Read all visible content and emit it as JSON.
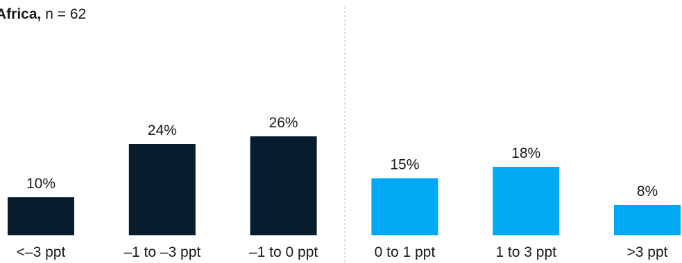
{
  "chart_data": {
    "type": "bar",
    "title_region": "Africa,",
    "title_n": "n = 62",
    "categories": [
      "<–3 ppt",
      "–1 to –3 ppt",
      "–1 to 0 ppt",
      "0 to 1 ppt",
      "1 to 3 ppt",
      ">3 ppt"
    ],
    "values": [
      10,
      24,
      26,
      15,
      18,
      8
    ],
    "value_labels": [
      "10%",
      "24%",
      "26%",
      "15%",
      "18%",
      "8%"
    ],
    "ylim": [
      0,
      30
    ],
    "grid": false,
    "legend": "none",
    "divider_after_index": 2,
    "colors": [
      "#071c2c",
      "#071c2c",
      "#071c2c",
      "#00a9f4",
      "#00a9f4",
      "#00a9f4"
    ]
  }
}
